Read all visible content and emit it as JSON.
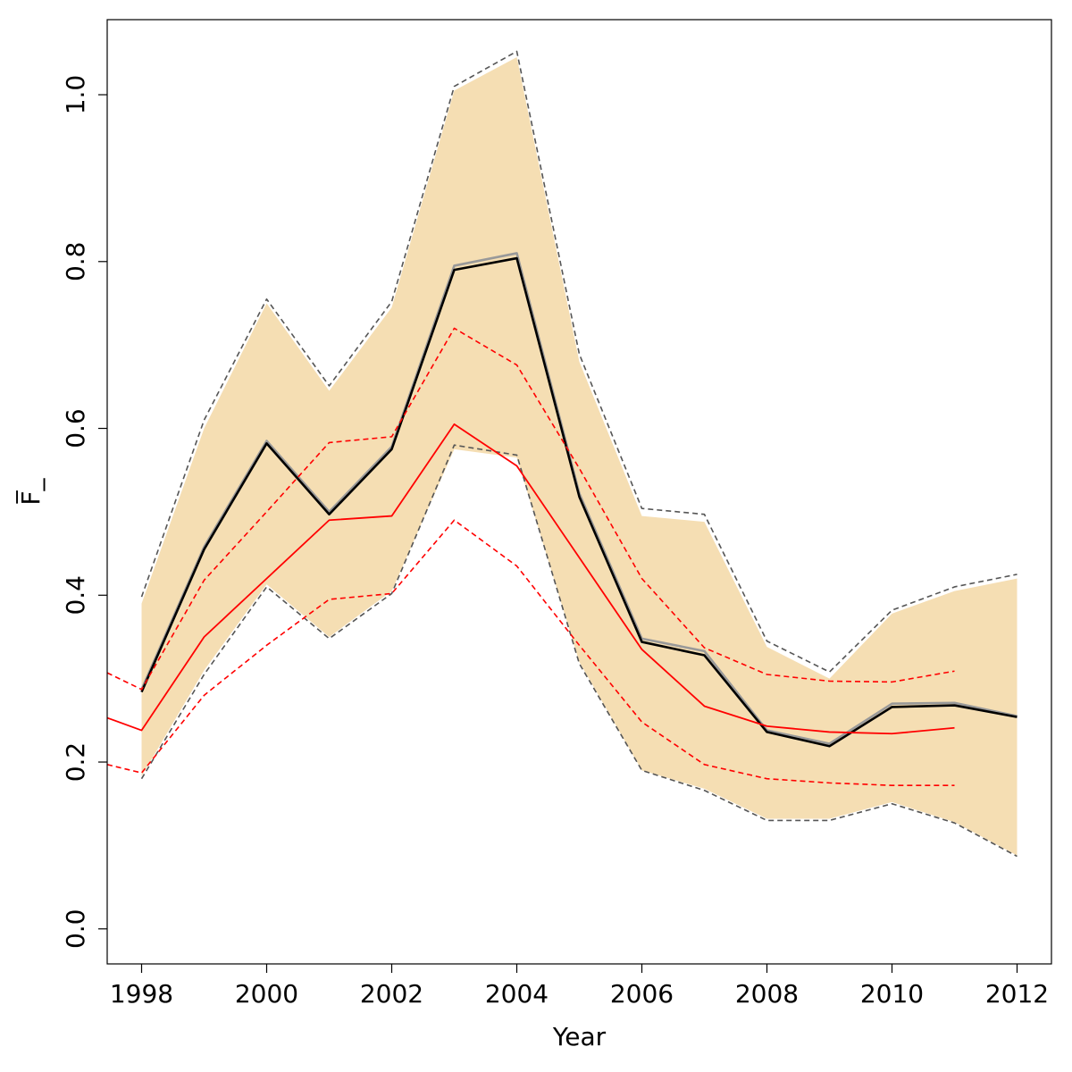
{
  "chart_data": {
    "type": "line",
    "xlabel": "Year",
    "ylabel": "F̅_",
    "xlim": [
      1997.45,
      2012.55
    ],
    "ylim": [
      -0.042,
      1.09
    ],
    "x_ticks": [
      1998,
      2000,
      2002,
      2004,
      2006,
      2008,
      2010,
      2012
    ],
    "x_tick_labels": [
      "1998",
      "2000",
      "2002",
      "2004",
      "2006",
      "2008",
      "2010",
      "2012"
    ],
    "y_ticks": [
      0.0,
      0.2,
      0.4,
      0.6,
      0.8,
      1.0
    ],
    "y_tick_labels": [
      "0.0",
      "0.2",
      "0.4",
      "0.6",
      "0.8",
      "1.0"
    ],
    "grid": false,
    "band": {
      "fill": "#f5deb3",
      "x": [
        1998,
        1999,
        2000,
        2001,
        2002,
        2003,
        2004,
        2005,
        2006,
        2007,
        2008,
        2009,
        2010,
        2011,
        2012
      ],
      "upper": [
        0.39,
        0.6,
        0.75,
        0.645,
        0.745,
        1.005,
        1.045,
        0.68,
        0.495,
        0.488,
        0.338,
        0.3,
        0.378,
        0.405,
        0.42
      ],
      "lower": [
        0.183,
        0.31,
        0.413,
        0.35,
        0.405,
        0.575,
        0.565,
        0.32,
        0.19,
        0.168,
        0.132,
        0.132,
        0.152,
        0.128,
        0.088
      ]
    },
    "series": [
      {
        "color": "#555555",
        "dash": "6,4",
        "width": 1.6,
        "x": [
          1998,
          1999,
          2000,
          2001,
          2002,
          2003,
          2004,
          2005,
          2006,
          2007,
          2008,
          2009,
          2010,
          2011,
          2012
        ],
        "values": [
          0.398,
          0.61,
          0.755,
          0.651,
          0.752,
          1.01,
          1.052,
          0.689,
          0.504,
          0.497,
          0.345,
          0.308,
          0.382,
          0.41,
          0.425
        ]
      },
      {
        "color": "#555555",
        "dash": "6,4",
        "width": 1.6,
        "x": [
          1998,
          1999,
          2000,
          2001,
          2002,
          2003,
          2004,
          2005,
          2006,
          2007,
          2008,
          2009,
          2010,
          2011,
          2012
        ],
        "values": [
          0.18,
          0.305,
          0.41,
          0.348,
          0.402,
          0.58,
          0.568,
          0.318,
          0.19,
          0.166,
          0.13,
          0.13,
          0.15,
          0.127,
          0.087
        ]
      },
      {
        "color": "#999999",
        "dash": "",
        "width": 2.6,
        "x": [
          1998,
          1999,
          2000,
          2001,
          2002,
          2003,
          2004,
          2005,
          2006,
          2007,
          2008,
          2009,
          2010,
          2011,
          2012
        ],
        "values": [
          0.287,
          0.458,
          0.585,
          0.5,
          0.578,
          0.795,
          0.81,
          0.522,
          0.348,
          0.333,
          0.238,
          0.222,
          0.27,
          0.271,
          0.255
        ]
      },
      {
        "color": "#000000",
        "dash": "",
        "width": 2.6,
        "x": [
          1998,
          1999,
          2000,
          2001,
          2002,
          2003,
          2004,
          2005,
          2006,
          2007,
          2008,
          2009,
          2010,
          2011,
          2012
        ],
        "values": [
          0.284,
          0.455,
          0.582,
          0.497,
          0.575,
          0.79,
          0.804,
          0.518,
          0.344,
          0.328,
          0.236,
          0.219,
          0.266,
          0.268,
          0.254
        ]
      },
      {
        "color": "#ff0000",
        "dash": "",
        "width": 1.8,
        "x": [
          1997.45,
          1998,
          1999,
          2000,
          2001,
          2002,
          2003,
          2004,
          2005,
          2006,
          2007,
          2008,
          2009,
          2010,
          2011
        ],
        "values": [
          0.253,
          0.238,
          0.35,
          0.42,
          0.49,
          0.495,
          0.605,
          0.555,
          0.445,
          0.335,
          0.267,
          0.243,
          0.236,
          0.234,
          0.241
        ]
      },
      {
        "color": "#ff0000",
        "dash": "6,4",
        "width": 1.6,
        "x": [
          1997.45,
          1998,
          1999,
          2000,
          2001,
          2002,
          2003,
          2004,
          2005,
          2006,
          2007,
          2008,
          2009,
          2010,
          2011
        ],
        "values": [
          0.307,
          0.287,
          0.418,
          0.5,
          0.583,
          0.59,
          0.72,
          0.676,
          0.552,
          0.42,
          0.337,
          0.305,
          0.297,
          0.296,
          0.309
        ]
      },
      {
        "color": "#ff0000",
        "dash": "6,4",
        "width": 1.6,
        "x": [
          1997.45,
          1998,
          1999,
          2000,
          2001,
          2002,
          2003,
          2004,
          2005,
          2006,
          2007,
          2008,
          2009,
          2010,
          2011
        ],
        "values": [
          0.197,
          0.187,
          0.28,
          0.34,
          0.395,
          0.402,
          0.49,
          0.435,
          0.34,
          0.248,
          0.197,
          0.18,
          0.175,
          0.172,
          0.172
        ]
      }
    ]
  }
}
